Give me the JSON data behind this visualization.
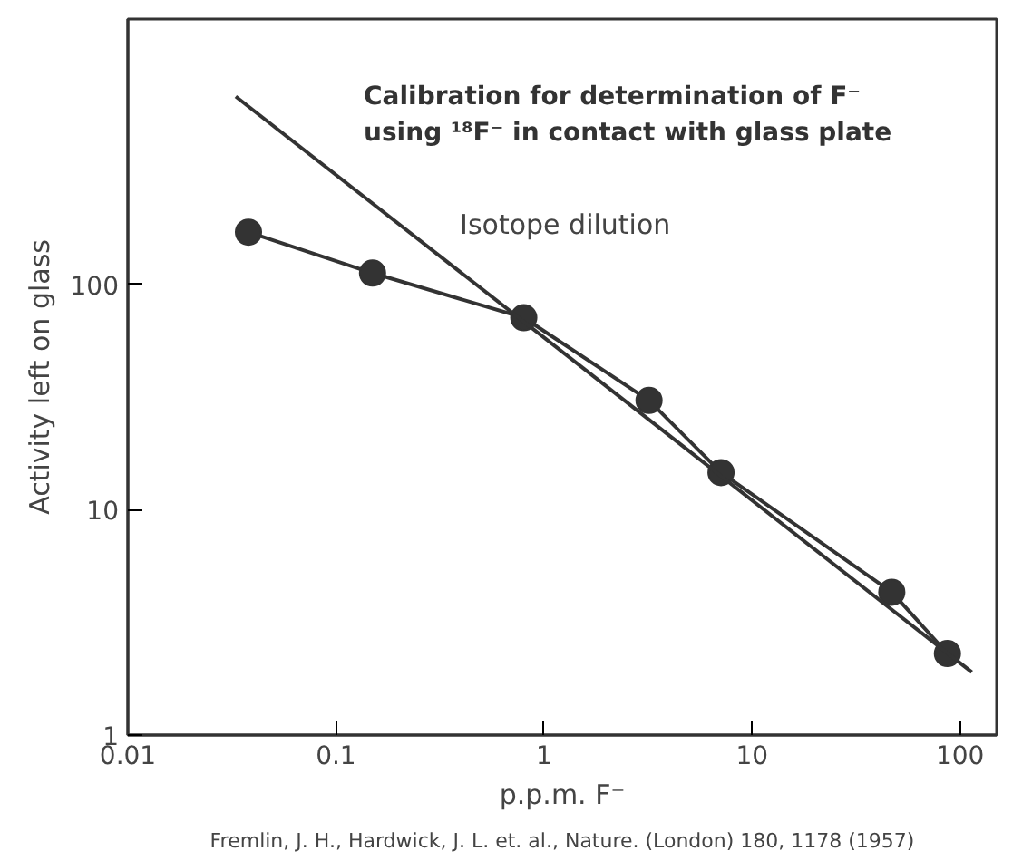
{
  "chart_data": {
    "type": "line",
    "title": "Calibration for determination of F⁻\nusing ¹⁸F⁻ in contact with glass plate",
    "xlabel": "p.p.m. F⁻",
    "ylabel": "Activity left on glass",
    "annotations": [
      "Fremlin, J. H., Hardwick, J. L. et. al., Nature. (London) 180, 1178 (1957)"
    ],
    "x": [
      0.038,
      0.15,
      0.8,
      3.2,
      7.1,
      47,
      87
    ],
    "series": [
      {
        "color": "#333333",
        "values": [
          170,
          112,
          71,
          30.5,
          14.6,
          4.3,
          2.3
        ],
        "marker": "circle"
      },
      {
        "name": "Isotope dilution",
        "type": "line",
        "color": "#333333",
        "x": [
          0.033,
          114
        ],
        "values": [
          680,
          1.9
        ],
        "marker": "none"
      }
    ],
    "log": "xy",
    "xlim": [
      0.01,
      150
    ],
    "ylim": [
      1,
      1500
    ],
    "xticks": [
      0.01,
      0.1,
      1,
      10,
      100
    ],
    "yticks": [
      1,
      10,
      100
    ],
    "grid": false
  }
}
